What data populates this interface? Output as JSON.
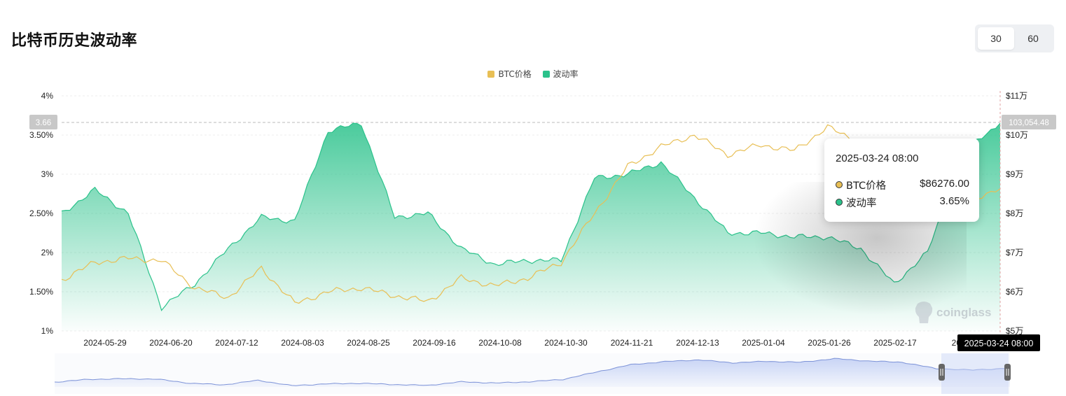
{
  "title": "比特币历史波动率",
  "period_buttons": [
    {
      "label": "30",
      "active": true
    },
    {
      "label": "60",
      "active": false
    }
  ],
  "legend": [
    {
      "label": "BTC价格",
      "color": "#E8BF55"
    },
    {
      "label": "波动率",
      "color": "#2BC28B"
    }
  ],
  "crosshair": {
    "left_value": "3.66",
    "right_value": "103,054.48",
    "date": "2025-03-24 08:00"
  },
  "tooltip": {
    "date": "2025-03-24 08:00",
    "rows": [
      {
        "label": "BTC价格",
        "value": "$86276.00",
        "dot_color": "#E8BF55"
      },
      {
        "label": "波动率",
        "value": "3.65%",
        "dot_color": "#2BC28B"
      }
    ]
  },
  "watermark": "coinglass",
  "chart_data": {
    "type": "area",
    "x_tick_labels": [
      "2024-05-29",
      "2024-06-20",
      "2024-07-12",
      "2024-08-03",
      "2024-08-25",
      "2024-09-16",
      "2024-10-08",
      "2024-10-30",
      "2024-11-21",
      "2024-12-13",
      "2025-01-04",
      "2025-01-26",
      "2025-02-17",
      "2025"
    ],
    "x": [
      "2024-05-18",
      "2024-05-29",
      "2024-06-09",
      "2024-06-20",
      "2024-07-01",
      "2024-07-12",
      "2024-07-23",
      "2024-08-03",
      "2024-08-14",
      "2024-08-25",
      "2024-09-05",
      "2024-09-16",
      "2024-09-27",
      "2024-10-08",
      "2024-10-19",
      "2024-10-30",
      "2024-11-10",
      "2024-11-21",
      "2024-12-02",
      "2024-12-13",
      "2024-12-24",
      "2025-01-04",
      "2025-01-15",
      "2025-01-26",
      "2025-02-06",
      "2025-02-17",
      "2025-02-28",
      "2025-03-12",
      "2025-03-24"
    ],
    "y_left": {
      "ticks": [
        "4%",
        "3.50%",
        "3%",
        "2.50%",
        "2%",
        "1.50%",
        "1%"
      ],
      "range": [
        1,
        4
      ]
    },
    "y_right": {
      "ticks": [
        "$11万",
        "$10万",
        "$9万",
        "$8万",
        "$7万",
        "$6万",
        "$5万"
      ],
      "range": [
        50000,
        110000
      ]
    },
    "series": [
      {
        "name": "波动率",
        "axis": "left",
        "color": "#2BC28B",
        "unit": "%",
        "values": [
          2.5,
          2.8,
          2.5,
          1.3,
          1.6,
          2.05,
          2.45,
          2.4,
          3.55,
          3.65,
          2.45,
          2.5,
          2.05,
          1.85,
          1.9,
          1.9,
          2.95,
          3.0,
          3.15,
          2.7,
          2.25,
          2.25,
          2.2,
          2.2,
          2.05,
          1.6,
          2.0,
          3.3,
          3.65
        ]
      },
      {
        "name": "BTC价格",
        "axis": "right",
        "color": "#E8BF55",
        "unit": "$",
        "values": [
          63000,
          67500,
          68500,
          68000,
          61000,
          58500,
          66000,
          57000,
          60000,
          61000,
          59000,
          57500,
          63500,
          61500,
          63500,
          67500,
          80000,
          92000,
          97000,
          100000,
          95000,
          97500,
          96000,
          102000,
          98000,
          96000,
          85500,
          83000,
          86276
        ]
      }
    ],
    "grid": true,
    "legend_position": "top-center"
  }
}
